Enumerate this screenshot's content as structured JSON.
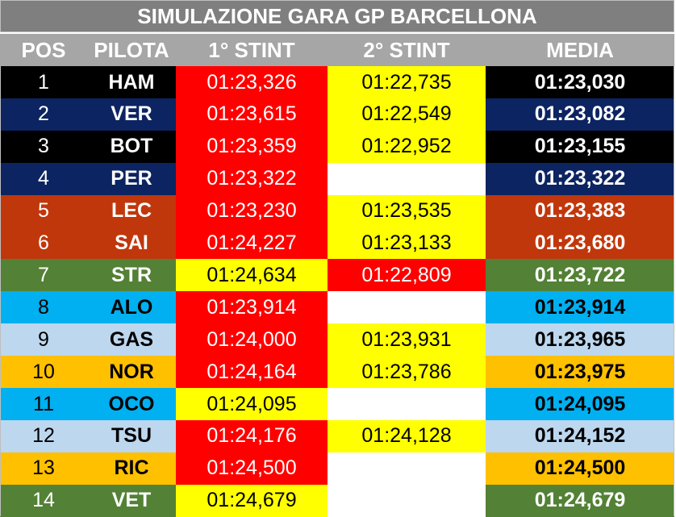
{
  "title": "SIMULAZIONE GARA GP BARCELLONA",
  "headers": {
    "pos": "POS",
    "pilota": "PILOTA",
    "stint1": "1° STINT",
    "stint2": "2° STINT",
    "media": "MEDIA"
  },
  "colors": {
    "black": "#000000",
    "navy": "#0c2461",
    "orange_red": "#c1370c",
    "green": "#538135",
    "sky": "#00b0f0",
    "light_blue": "#bdd7ee",
    "amber": "#ffc000",
    "red": "#ff0000",
    "yellow": "#ffff00",
    "white": "#ffffff"
  },
  "rows": [
    {
      "pos": "1",
      "pilota": "HAM",
      "stint1": "01:23,326",
      "stint2": "01:22,735",
      "media": "01:23,030",
      "team_bg": "#000000",
      "team_fg": "#ffffff",
      "s1_bg": "#ff0000",
      "s1_fg": "#ffffff",
      "s2_bg": "#ffff00",
      "s2_fg": "#000000"
    },
    {
      "pos": "2",
      "pilota": "VER",
      "stint1": "01:23,615",
      "stint2": "01:22,549",
      "media": "01:23,082",
      "team_bg": "#0c2461",
      "team_fg": "#ffffff",
      "s1_bg": "#ff0000",
      "s1_fg": "#ffffff",
      "s2_bg": "#ffff00",
      "s2_fg": "#000000"
    },
    {
      "pos": "3",
      "pilota": "BOT",
      "stint1": "01:23,359",
      "stint2": "01:22,952",
      "media": "01:23,155",
      "team_bg": "#000000",
      "team_fg": "#ffffff",
      "s1_bg": "#ff0000",
      "s1_fg": "#ffffff",
      "s2_bg": "#ffff00",
      "s2_fg": "#000000"
    },
    {
      "pos": "4",
      "pilota": "PER",
      "stint1": "01:23,322",
      "stint2": "",
      "media": "01:23,322",
      "team_bg": "#0c2461",
      "team_fg": "#ffffff",
      "s1_bg": "#ff0000",
      "s1_fg": "#ffffff",
      "s2_bg": "#ffffff",
      "s2_fg": "#000000"
    },
    {
      "pos": "5",
      "pilota": "LEC",
      "stint1": "01:23,230",
      "stint2": "01:23,535",
      "media": "01:23,383",
      "team_bg": "#c1370c",
      "team_fg": "#ffffff",
      "s1_bg": "#ff0000",
      "s1_fg": "#ffffff",
      "s2_bg": "#ffff00",
      "s2_fg": "#000000"
    },
    {
      "pos": "6",
      "pilota": "SAI",
      "stint1": "01:24,227",
      "stint2": "01:23,133",
      "media": "01:23,680",
      "team_bg": "#c1370c",
      "team_fg": "#ffffff",
      "s1_bg": "#ff0000",
      "s1_fg": "#ffffff",
      "s2_bg": "#ffff00",
      "s2_fg": "#000000"
    },
    {
      "pos": "7",
      "pilota": "STR",
      "stint1": "01:24,634",
      "stint2": "01:22,809",
      "media": "01:23,722",
      "team_bg": "#538135",
      "team_fg": "#ffffff",
      "s1_bg": "#ffff00",
      "s1_fg": "#000000",
      "s2_bg": "#ff0000",
      "s2_fg": "#ffffff"
    },
    {
      "pos": "8",
      "pilota": "ALO",
      "stint1": "01:23,914",
      "stint2": "",
      "media": "01:23,914",
      "team_bg": "#00b0f0",
      "team_fg": "#000000",
      "s1_bg": "#ff0000",
      "s1_fg": "#ffffff",
      "s2_bg": "#ffffff",
      "s2_fg": "#000000"
    },
    {
      "pos": "9",
      "pilota": "GAS",
      "stint1": "01:24,000",
      "stint2": "01:23,931",
      "media": "01:23,965",
      "team_bg": "#bdd7ee",
      "team_fg": "#000000",
      "s1_bg": "#ff0000",
      "s1_fg": "#ffffff",
      "s2_bg": "#ffff00",
      "s2_fg": "#000000"
    },
    {
      "pos": "10",
      "pilota": "NOR",
      "stint1": "01:24,164",
      "stint2": "01:23,786",
      "media": "01:23,975",
      "team_bg": "#ffc000",
      "team_fg": "#000000",
      "s1_bg": "#ff0000",
      "s1_fg": "#ffffff",
      "s2_bg": "#ffff00",
      "s2_fg": "#000000"
    },
    {
      "pos": "11",
      "pilota": "OCO",
      "stint1": "01:24,095",
      "stint2": "",
      "media": "01:24,095",
      "team_bg": "#00b0f0",
      "team_fg": "#000000",
      "s1_bg": "#ffff00",
      "s1_fg": "#000000",
      "s2_bg": "#ffffff",
      "s2_fg": "#000000"
    },
    {
      "pos": "12",
      "pilota": "TSU",
      "stint1": "01:24,176",
      "stint2": "01:24,128",
      "media": "01:24,152",
      "team_bg": "#bdd7ee",
      "team_fg": "#000000",
      "s1_bg": "#ff0000",
      "s1_fg": "#ffffff",
      "s2_bg": "#ffff00",
      "s2_fg": "#000000"
    },
    {
      "pos": "13",
      "pilota": "RIC",
      "stint1": "01:24,500",
      "stint2": "",
      "media": "01:24,500",
      "team_bg": "#ffc000",
      "team_fg": "#000000",
      "s1_bg": "#ff0000",
      "s1_fg": "#ffffff",
      "s2_bg": "#ffffff",
      "s2_fg": "#000000"
    },
    {
      "pos": "14",
      "pilota": "VET",
      "stint1": "01:24,679",
      "stint2": "",
      "media": "01:24,679",
      "team_bg": "#538135",
      "team_fg": "#ffffff",
      "s1_bg": "#ffff00",
      "s1_fg": "#000000",
      "s2_bg": "#ffffff",
      "s2_fg": "#000000"
    }
  ]
}
